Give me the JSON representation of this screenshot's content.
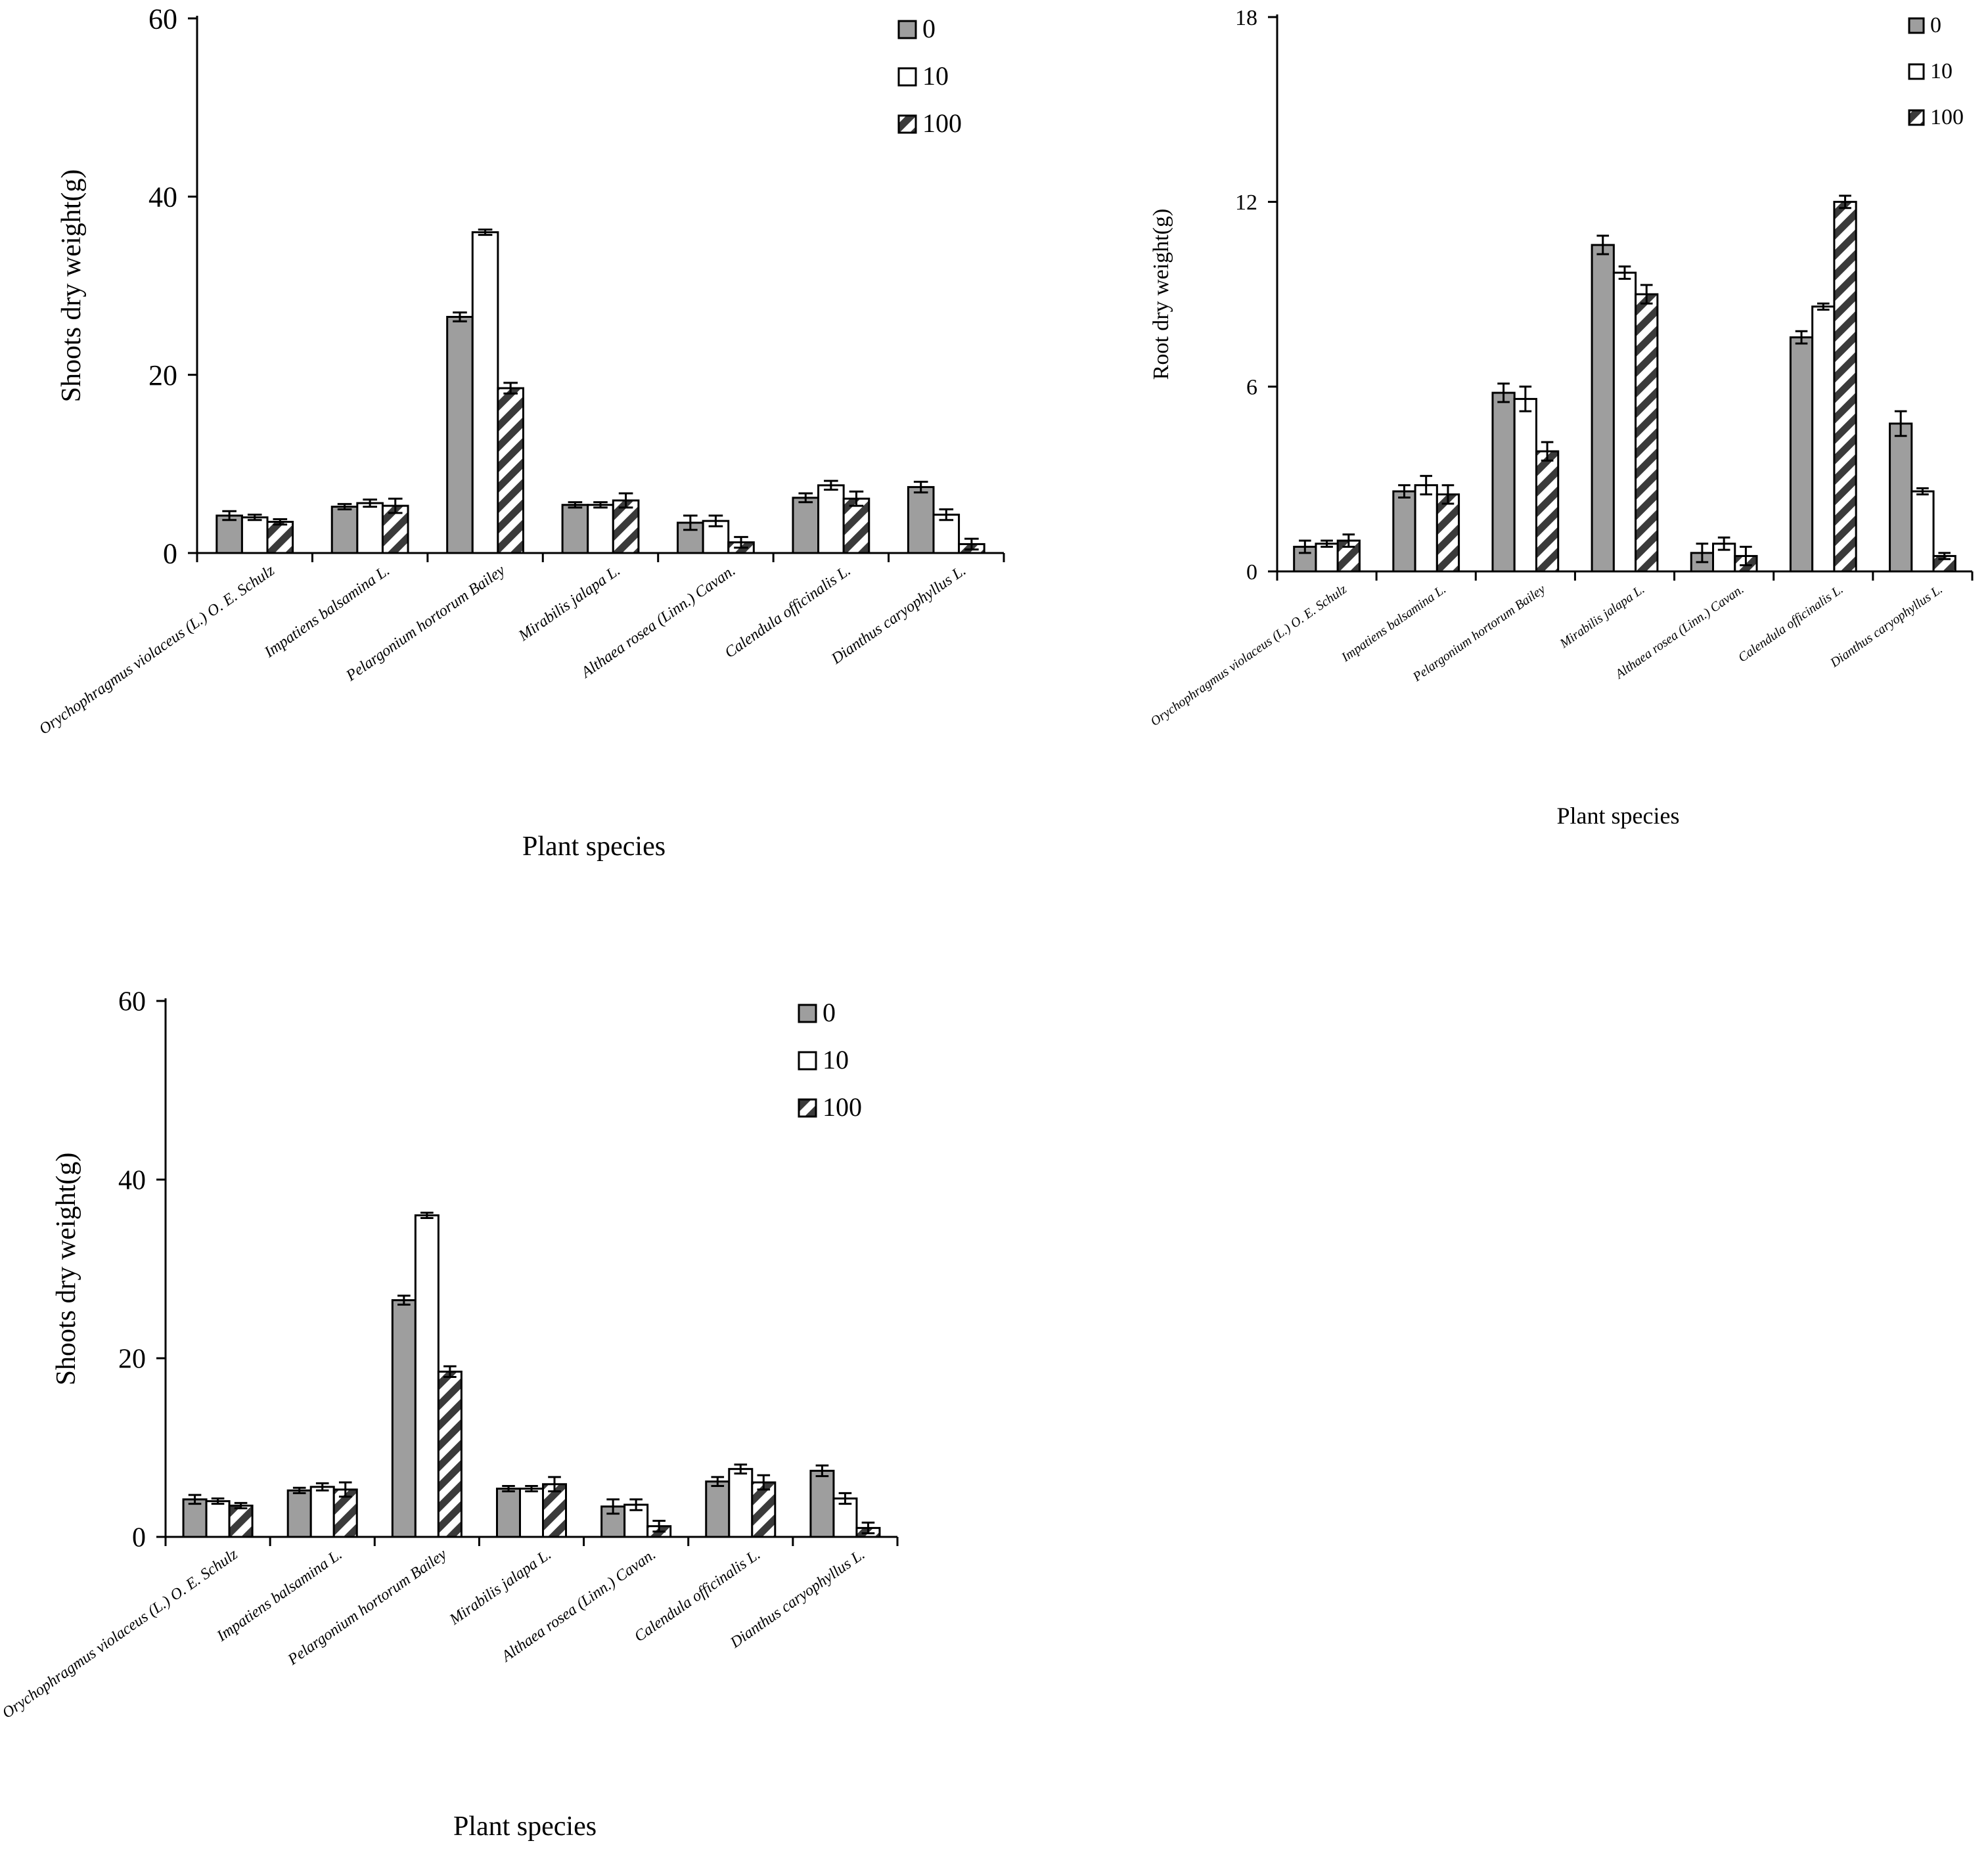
{
  "colors": {
    "series0": "#9e9e9e",
    "series10": "#ffffff",
    "series100_a": "#ffffff",
    "series100_b": "#3a3a3a",
    "axis": "#000000"
  },
  "chart_data": [
    {
      "type": "bar",
      "title": "",
      "xlabel": "Plant species",
      "ylabel": "Shoots dry weight(g)",
      "ylim": [
        0,
        60
      ],
      "yticks": [
        "0",
        "20",
        "40",
        "60"
      ],
      "legend_position": "top-right",
      "categories": [
        "Orychophragmus violaceus (L.) O. E. Schulz",
        "Impatiens balsamina L.",
        "Pelargonium hortorum Bailey",
        "Mirabilis jalapa L.",
        "Althaea rosea (Linn.) Cavan.",
        "Calendula officinalis L.",
        "Dianthus caryophyllus L."
      ],
      "series": [
        {
          "name": "0",
          "values": [
            4.2,
            5.2,
            26.5,
            5.4,
            3.4,
            6.2,
            7.4
          ],
          "errors": [
            0.5,
            0.3,
            0.5,
            0.3,
            0.8,
            0.5,
            0.6
          ]
        },
        {
          "name": "10",
          "values": [
            4.0,
            5.6,
            36.0,
            5.4,
            3.6,
            7.6,
            4.3
          ],
          "errors": [
            0.3,
            0.4,
            0.3,
            0.3,
            0.6,
            0.5,
            0.6
          ]
        },
        {
          "name": "100",
          "values": [
            3.5,
            5.3,
            18.5,
            5.9,
            1.2,
            6.1,
            1.0
          ],
          "errors": [
            0.3,
            0.8,
            0.6,
            0.8,
            0.6,
            0.8,
            0.6
          ]
        }
      ]
    },
    {
      "type": "bar",
      "title": "",
      "xlabel": "Plant species",
      "ylabel": "Root dry weight(g)",
      "ylim": [
        0,
        18
      ],
      "yticks": [
        "0",
        "6",
        "12",
        "18"
      ],
      "legend_position": "top-right",
      "categories": [
        "Orychophragmus violaceus (L.) O. E. Schulz",
        "Impatiens balsamina L.",
        "Pelargonium hortorum Bailey",
        "Mirabilis jalapa L.",
        "Althaea rosea (Linn.) Cavan.",
        "Calendula officinalis L.",
        "Dianthus caryophyllus L."
      ],
      "series": [
        {
          "name": "0",
          "values": [
            0.8,
            2.6,
            5.8,
            10.6,
            0.6,
            7.6,
            4.8
          ],
          "errors": [
            0.2,
            0.2,
            0.3,
            0.3,
            0.3,
            0.2,
            0.4
          ]
        },
        {
          "name": "10",
          "values": [
            0.9,
            2.8,
            5.6,
            9.7,
            0.9,
            8.6,
            2.6
          ],
          "errors": [
            0.1,
            0.3,
            0.4,
            0.2,
            0.2,
            0.1,
            0.1
          ]
        },
        {
          "name": "100",
          "values": [
            1.0,
            2.5,
            3.9,
            9.0,
            0.5,
            12.0,
            0.5
          ],
          "errors": [
            0.2,
            0.3,
            0.3,
            0.3,
            0.3,
            0.2,
            0.1
          ]
        }
      ]
    },
    {
      "type": "bar",
      "title": "",
      "xlabel": "Plant species",
      "ylabel": "Shoots dry weight(g)",
      "ylim": [
        0,
        60
      ],
      "yticks": [
        "0",
        "20",
        "40",
        "60"
      ],
      "legend_position": "top-right",
      "categories": [
        "Orychophragmus violaceus (L.) O. E. Schulz",
        "Impatiens balsamina L.",
        "Pelargonium hortorum Bailey",
        "Mirabilis jalapa L.",
        "Althaea rosea (Linn.) Cavan.",
        "Calendula officinalis L.",
        "Dianthus caryophyllus L."
      ],
      "series": [
        {
          "name": "0",
          "values": [
            4.2,
            5.2,
            26.5,
            5.4,
            3.4,
            6.2,
            7.4
          ],
          "errors": [
            0.5,
            0.3,
            0.5,
            0.3,
            0.8,
            0.5,
            0.6
          ]
        },
        {
          "name": "10",
          "values": [
            4.0,
            5.6,
            36.0,
            5.4,
            3.6,
            7.6,
            4.3
          ],
          "errors": [
            0.3,
            0.4,
            0.3,
            0.3,
            0.6,
            0.5,
            0.6
          ]
        },
        {
          "name": "100",
          "values": [
            3.5,
            5.3,
            18.5,
            5.9,
            1.2,
            6.1,
            1.0
          ],
          "errors": [
            0.3,
            0.8,
            0.6,
            0.8,
            0.6,
            0.8,
            0.6
          ]
        }
      ]
    }
  ]
}
